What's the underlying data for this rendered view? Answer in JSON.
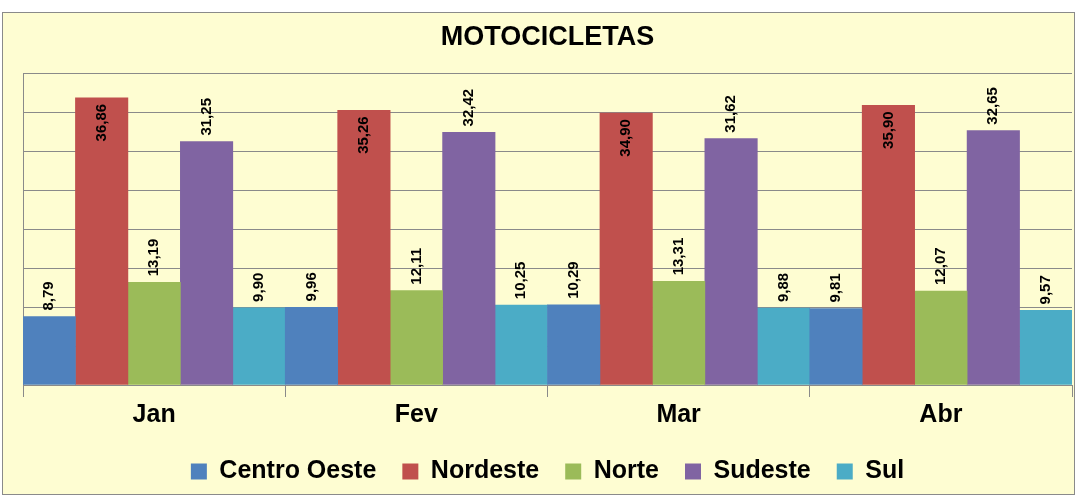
{
  "chart_data": {
    "type": "bar",
    "title": "MOTOCICLETAS",
    "categories": [
      "Jan",
      "Fev",
      "Mar",
      "Abr"
    ],
    "series": [
      {
        "name": "Centro Oeste",
        "color": "#4f81bd",
        "values": [
          8.79,
          9.96,
          10.29,
          9.81
        ],
        "value_labels": [
          "8,79",
          "9,96",
          "10,29",
          "9,81"
        ]
      },
      {
        "name": "Nordeste",
        "color": "#c0504d",
        "values": [
          36.86,
          35.26,
          34.9,
          35.9
        ],
        "value_labels": [
          "36,86",
          "35,26",
          "34,90",
          "35,90"
        ]
      },
      {
        "name": "Norte",
        "color": "#9bbb59",
        "values": [
          13.19,
          12.11,
          13.31,
          12.07
        ],
        "value_labels": [
          "13,19",
          "12,11",
          "13,31",
          "12,07"
        ]
      },
      {
        "name": "Sudeste",
        "color": "#8064a2",
        "values": [
          31.25,
          32.42,
          31.62,
          32.65
        ],
        "value_labels": [
          "31,25",
          "32,42",
          "31,62",
          "32,65"
        ]
      },
      {
        "name": "Sul",
        "color": "#4bacc6",
        "values": [
          9.9,
          10.25,
          9.88,
          9.57
        ],
        "value_labels": [
          "9,90",
          "10,25",
          "9,88",
          "9,57"
        ]
      }
    ],
    "tick_labels": "x",
    "grid": "y",
    "legend": "bottom"
  }
}
